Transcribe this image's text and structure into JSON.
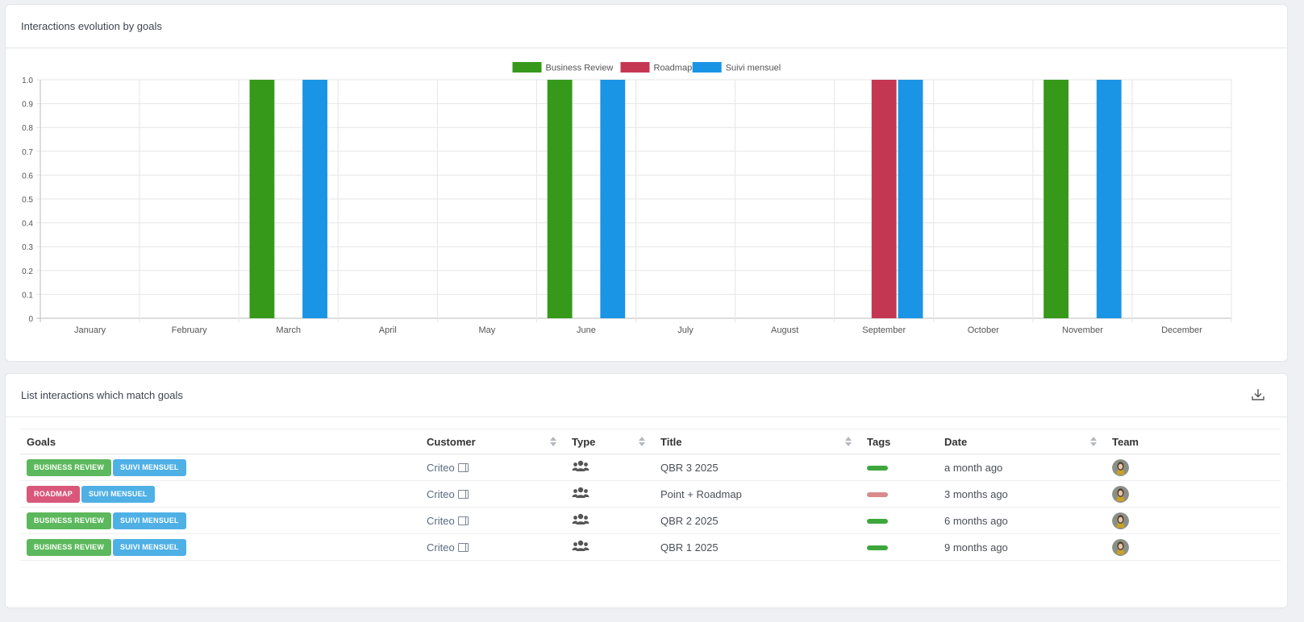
{
  "chart_panel": {
    "title": "Interactions evolution by goals"
  },
  "list_panel": {
    "title": "List interactions which match goals",
    "download_icon": "download-icon"
  },
  "chart_data": {
    "type": "bar",
    "categories": [
      "January",
      "February",
      "March",
      "April",
      "May",
      "June",
      "July",
      "August",
      "September",
      "October",
      "November",
      "December"
    ],
    "series": [
      {
        "name": "Business Review",
        "color": "#36991a",
        "values": [
          0,
          0,
          1,
          0,
          0,
          1,
          0,
          0,
          0,
          0,
          1,
          0
        ]
      },
      {
        "name": "Roadmap",
        "color": "#c43752",
        "values": [
          0,
          0,
          0,
          0,
          0,
          0,
          0,
          0,
          1,
          0,
          0,
          0
        ]
      },
      {
        "name": "Suivi mensuel",
        "color": "#1a94e5",
        "values": [
          0,
          0,
          1,
          0,
          0,
          1,
          0,
          0,
          1,
          0,
          1,
          0
        ]
      }
    ],
    "ylim": [
      0,
      1.0
    ],
    "yticks": [
      "0",
      "0.1",
      "0.2",
      "0.3",
      "0.4",
      "0.5",
      "0.6",
      "0.7",
      "0.8",
      "0.9",
      "1.0"
    ],
    "legend": "top-center",
    "grid": true
  },
  "table": {
    "headers": {
      "goals": "Goals",
      "customer": "Customer",
      "type": "Type",
      "title": "Title",
      "tags": "Tags",
      "date": "Date",
      "team": "Team"
    },
    "goal_colors": {
      "BUSINESS REVIEW": "#5cb85c",
      "SUIVI MENSUEL": "#4fb0e6",
      "ROADMAP": "#d9577a"
    },
    "rows": [
      {
        "goals": [
          "BUSINESS REVIEW",
          "SUIVI MENSUEL"
        ],
        "customer": "Criteo",
        "type_icon": "users-icon",
        "title": "QBR 3 2025",
        "tag_color": "#3da63d",
        "date": "a month ago"
      },
      {
        "goals": [
          "ROADMAP",
          "SUIVI MENSUEL"
        ],
        "customer": "Criteo",
        "type_icon": "users-icon",
        "title": "Point + Roadmap",
        "tag_color": "#d98a8a",
        "date": "3 months ago"
      },
      {
        "goals": [
          "BUSINESS REVIEW",
          "SUIVI MENSUEL"
        ],
        "customer": "Criteo",
        "type_icon": "users-icon",
        "title": "QBR 2 2025",
        "tag_color": "#3da63d",
        "date": "6 months ago"
      },
      {
        "goals": [
          "BUSINESS REVIEW",
          "SUIVI MENSUEL"
        ],
        "customer": "Criteo",
        "type_icon": "users-icon",
        "title": "QBR 1 2025",
        "tag_color": "#3da63d",
        "date": "9 months ago"
      }
    ]
  }
}
